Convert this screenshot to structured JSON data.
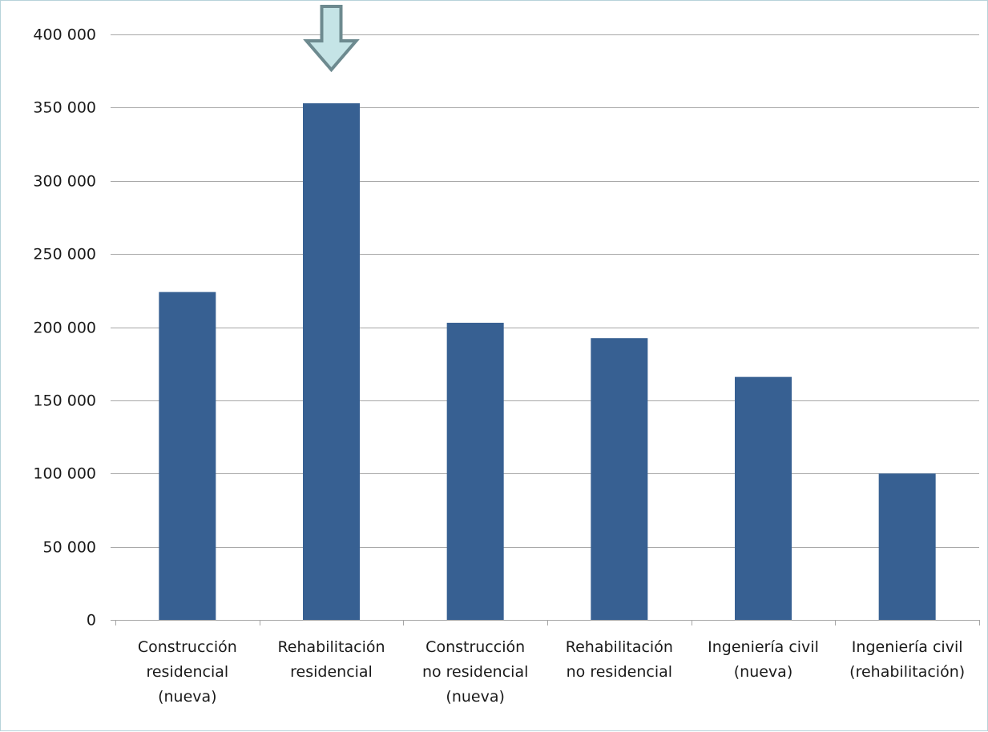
{
  "chart_data": {
    "type": "bar",
    "title": "",
    "xlabel": "",
    "ylabel": "",
    "categories": [
      [
        "Construcción",
        "residencial",
        "(nueva)"
      ],
      [
        "Rehabilitación",
        "residencial"
      ],
      [
        "Construcción",
        "no residencial",
        "(nueva)"
      ],
      [
        "Rehabilitación",
        "no residencial"
      ],
      [
        "Ingeniería civil",
        "(nueva)"
      ],
      [
        "Ingeniería civil",
        "(rehabilitación)"
      ]
    ],
    "values": [
      224000,
      353000,
      203000,
      192500,
      166000,
      100000
    ],
    "ylim": [
      0,
      400000
    ],
    "y_ticks": [
      0,
      50000,
      100000,
      150000,
      200000,
      250000,
      300000,
      350000,
      400000
    ],
    "y_tick_labels": [
      "0",
      "50 000",
      "100 000",
      "150 000",
      "200 000",
      "250 000",
      "300 000",
      "350 000",
      "400 000"
    ],
    "grid": true,
    "legend": "none",
    "highlight_category_index": 1,
    "colors": {
      "bar": "#376092",
      "grid": "#a6a6a6",
      "axis": "#a6a6a6",
      "arrow_fill": "#c5e4e6",
      "arrow_stroke": "#6d8a8f",
      "frame_border": "#b7d3da"
    }
  }
}
